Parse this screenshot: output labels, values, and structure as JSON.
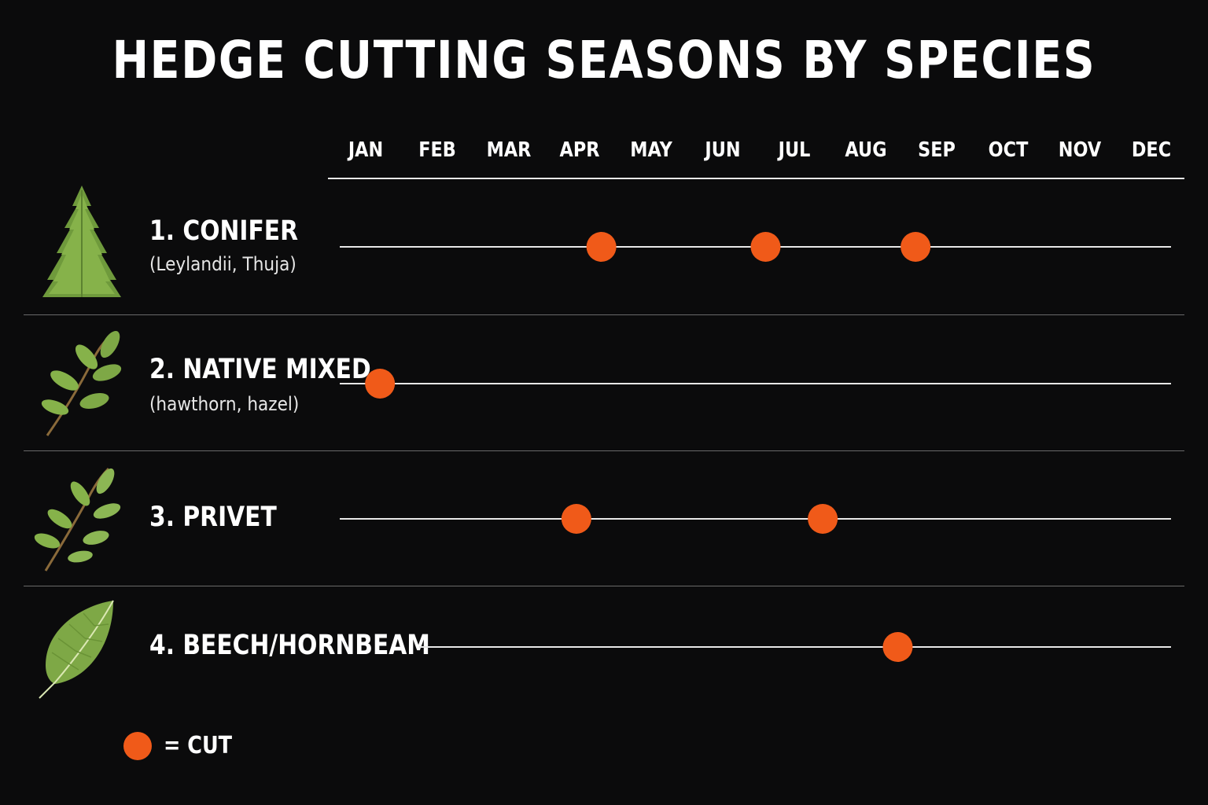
{
  "chart_data": {
    "type": "timeline",
    "title": "HEDGE CUTTING SEASONS BY SPECIES",
    "months": [
      "JAN",
      "FEB",
      "MAR",
      "APR",
      "MAY",
      "JUN",
      "JUL",
      "AUG",
      "SEP",
      "OCT",
      "NOV",
      "DEC"
    ],
    "marker_color": "#f05a19",
    "series": [
      {
        "name": "1. CONIFER",
        "subtitle": "(Leylandii, Thuja)",
        "icon": "conifer-icon",
        "cuts": [
          4.3,
          6.6,
          8.7
        ]
      },
      {
        "name": "2. NATIVE MIXED",
        "subtitle": "(hawthorn, hazel)",
        "icon": "leafy-sprig-icon",
        "cuts": [
          1.2
        ]
      },
      {
        "name": "3. PRIVET",
        "subtitle": "",
        "icon": "privet-sprig-icon",
        "cuts": [
          3.95,
          7.4
        ]
      },
      {
        "name": "4. BEECH/HORNBEAM",
        "subtitle": "",
        "icon": "beech-leaf-icon",
        "cuts": [
          8.45
        ]
      }
    ],
    "legend": {
      "text": "= CUT",
      "placement": "bottom-left"
    }
  }
}
